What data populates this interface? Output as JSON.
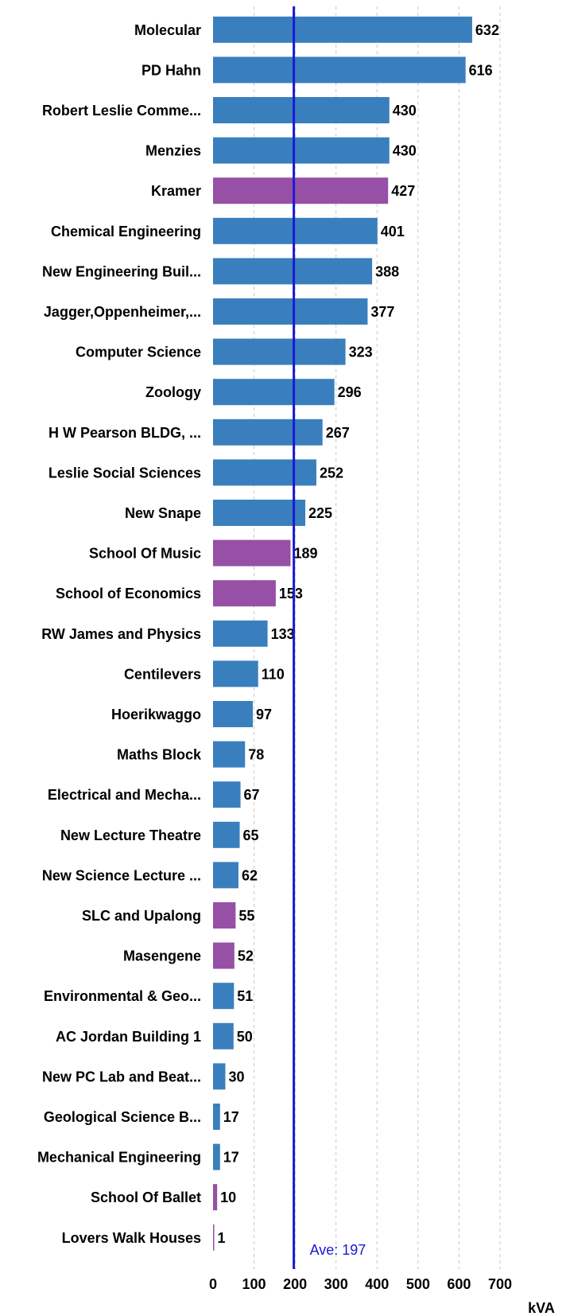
{
  "chart_data": {
    "type": "bar",
    "orientation": "horizontal",
    "categories": [
      "Molecular",
      "PD Hahn",
      "Robert Leslie Comme...",
      "Menzies",
      "Kramer",
      "Chemical Engineering",
      "New Engineering Buil...",
      "Jagger,Oppenheimer,...",
      "Computer Science",
      "Zoology",
      "H W Pearson BLDG, ...",
      "Leslie Social Sciences",
      "New Snape",
      "School Of Music",
      "School of Economics",
      "RW James and Physics",
      "Centilevers",
      "Hoerikwaggo",
      "Maths Block",
      "Electrical and Mecha...",
      "New Lecture Theatre",
      "New Science Lecture ...",
      "SLC and Upalong",
      "Masengene",
      "Environmental & Geo...",
      "AC Jordan Building 1",
      "New PC Lab and Beat...",
      "Geological Science B...",
      "Mechanical Engineering",
      "School Of Ballet",
      "Lovers Walk Houses"
    ],
    "values": [
      632,
      616,
      430,
      430,
      427,
      401,
      388,
      377,
      323,
      296,
      267,
      252,
      225,
      189,
      153,
      133,
      110,
      97,
      78,
      67,
      65,
      62,
      55,
      52,
      51,
      50,
      30,
      17,
      17,
      10,
      1
    ],
    "bar_colors": [
      "#3a7fbd",
      "#3a7fbd",
      "#3a7fbd",
      "#3a7fbd",
      "#9650a5",
      "#3a7fbd",
      "#3a7fbd",
      "#3a7fbd",
      "#3a7fbd",
      "#3a7fbd",
      "#3a7fbd",
      "#3a7fbd",
      "#3a7fbd",
      "#9650a5",
      "#9650a5",
      "#3a7fbd",
      "#3a7fbd",
      "#3a7fbd",
      "#3a7fbd",
      "#3a7fbd",
      "#3a7fbd",
      "#3a7fbd",
      "#9650a5",
      "#9650a5",
      "#3a7fbd",
      "#3a7fbd",
      "#3a7fbd",
      "#3a7fbd",
      "#3a7fbd",
      "#9650a5",
      "#9650a5"
    ],
    "x_ticks": [
      0,
      100,
      200,
      300,
      400,
      500,
      600,
      700
    ],
    "xlim": [
      0,
      700
    ],
    "xlabel": "kVA",
    "average": {
      "value": 197,
      "label": "Ave: 197",
      "color": "#1a1ad4"
    },
    "grid": "vertical dashed"
  }
}
